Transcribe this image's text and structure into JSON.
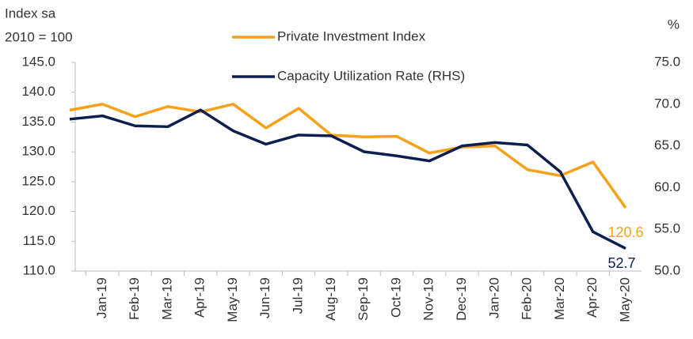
{
  "chart_data": {
    "type": "line",
    "y_label": [
      "Index sa",
      "2010 = 100"
    ],
    "y2_label": "%",
    "categories": [
      null,
      "Jan-19",
      "Feb-19",
      "Mar-19",
      "Apr-19",
      "May-19",
      "Jun-19",
      "Jul-19",
      "Aug-19",
      "Sep-19",
      "Oct-19",
      "Nov-19",
      "Dec-19",
      "Jan-20",
      "Feb-20",
      "Mar-20",
      "Apr-20",
      "May-20"
    ],
    "series": [
      {
        "name": "Private Investment Index",
        "color": "#f7a11a",
        "values": [
          137,
          138,
          135.9,
          137.6,
          136.7,
          138,
          134,
          137.3,
          132.8,
          132.5,
          132.6,
          129.8,
          130.8,
          131,
          127,
          126,
          128.3,
          120.6
        ]
      },
      {
        "name": "Capacity Utilization Rate (RHS)",
        "color": "#0c1f4e",
        "axis": "y2",
        "values": [
          68.2,
          68.6,
          67.4,
          67.3,
          69.3,
          66.8,
          65.2,
          66.3,
          66.2,
          64.3,
          63.8,
          63.2,
          65.0,
          65.4,
          65.1,
          61.9,
          54.7,
          52.7
        ]
      }
    ],
    "ylim": [
      110,
      145
    ],
    "yticks": [
      {
        "value": 110,
        "label": "110.0"
      },
      {
        "value": 115,
        "label": "115.0"
      },
      {
        "value": 120,
        "label": "120.0"
      },
      {
        "value": 125,
        "label": "125.0"
      },
      {
        "value": 130,
        "label": "130.0"
      },
      {
        "value": 135,
        "label": "135.0"
      },
      {
        "value": 140,
        "label": "140.0"
      },
      {
        "value": 145,
        "label": "145.0"
      }
    ],
    "y2lim": [
      50,
      75
    ],
    "y2ticks": [
      {
        "value": 50,
        "label": "50.0"
      },
      {
        "value": 55,
        "label": "55.0"
      },
      {
        "value": 60,
        "label": "60.0"
      },
      {
        "value": 65,
        "label": "65.0"
      },
      {
        "value": 70,
        "label": "70.0"
      },
      {
        "value": 75,
        "label": "75.0"
      }
    ],
    "grid": false
  }
}
